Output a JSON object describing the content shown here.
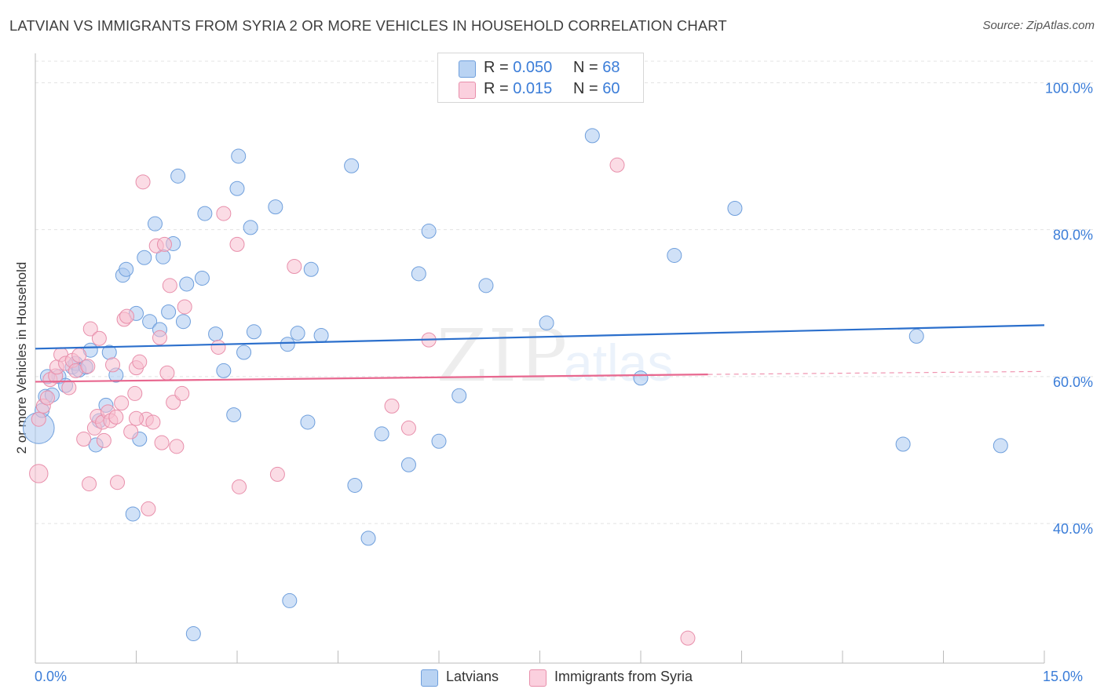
{
  "header": {
    "title": "LATVIAN VS IMMIGRANTS FROM SYRIA 2 OR MORE VEHICLES IN HOUSEHOLD CORRELATION CHART",
    "source": "Source: ZipAtlas.com"
  },
  "watermark": {
    "zip": "ZIP",
    "atlas": "atlas"
  },
  "legend_top": {
    "rows": [
      {
        "r_label": "R = ",
        "r_value": "0.050",
        "n_label": "N = ",
        "n_value": "68"
      },
      {
        "r_label": "R = ",
        "r_value": "0.015",
        "n_label": "N = ",
        "n_value": "60"
      }
    ]
  },
  "legend_bottom": {
    "series1": "Latvians",
    "series2": "Immigrants from Syria"
  },
  "axis": {
    "x_min_label": "0.0%",
    "x_max_label": "15.0%"
  },
  "colors": {
    "latvians_fill": "#a9c8f0",
    "latvians_stroke": "#6f9fdc",
    "latvians_line": "#2b6fcc",
    "syria_fill": "#f7bfd0",
    "syria_stroke": "#e88fab",
    "syria_line": "#e8678f",
    "tick_label": "#3b7dd8",
    "grid": "#e3e3e3"
  },
  "chart_data": {
    "type": "scatter",
    "title": "LATVIAN VS IMMIGRANTS FROM SYRIA 2 OR MORE VEHICLES IN HOUSEHOLD CORRELATION CHART",
    "xlabel": "",
    "ylabel": "2 or more Vehicles in Household",
    "xlim": [
      0,
      15
    ],
    "ylim": [
      21,
      104
    ],
    "y_ticks": [
      40,
      60,
      80,
      100
    ],
    "y_tick_labels": [
      "40.0%",
      "60.0%",
      "80.0%",
      "100.0%"
    ],
    "x_tick_labels": [
      "0.0%",
      "15.0%"
    ],
    "grid": true,
    "legend_position": "top-center",
    "series": [
      {
        "name": "Latvians",
        "r": 0.05,
        "n": 68,
        "trend": {
          "x": [
            0,
            15
          ],
          "y": [
            63.8,
            67.0
          ]
        },
        "points": [
          [
            0.05,
            53.0,
            2.2
          ],
          [
            0.1,
            55.4,
            1
          ],
          [
            0.15,
            57.3,
            1
          ],
          [
            0.25,
            57.5,
            1
          ],
          [
            0.35,
            60.0,
            1
          ],
          [
            0.45,
            58.8,
            1
          ],
          [
            0.55,
            61.3,
            1
          ],
          [
            0.6,
            61.8,
            1
          ],
          [
            0.65,
            60.9,
            1
          ],
          [
            0.75,
            61.3,
            1
          ],
          [
            0.82,
            63.6,
            1
          ],
          [
            0.9,
            50.7,
            1
          ],
          [
            0.95,
            54.0,
            1
          ],
          [
            1.05,
            56.1,
            1
          ],
          [
            1.1,
            63.3,
            1
          ],
          [
            1.2,
            60.2,
            1
          ],
          [
            1.3,
            73.8,
            1
          ],
          [
            1.35,
            74.6,
            1
          ],
          [
            1.45,
            41.3,
            1
          ],
          [
            1.5,
            68.6,
            1
          ],
          [
            1.55,
            51.5,
            1
          ],
          [
            1.62,
            76.2,
            1
          ],
          [
            1.7,
            67.5,
            1
          ],
          [
            1.78,
            80.8,
            1
          ],
          [
            1.85,
            66.4,
            1
          ],
          [
            1.9,
            76.3,
            1
          ],
          [
            1.98,
            68.8,
            1
          ],
          [
            2.05,
            78.1,
            1
          ],
          [
            2.12,
            87.3,
            1
          ],
          [
            2.2,
            67.5,
            1
          ],
          [
            2.25,
            72.6,
            1
          ],
          [
            2.35,
            25.0,
            1
          ],
          [
            2.48,
            73.4,
            1
          ],
          [
            2.52,
            82.2,
            1
          ],
          [
            2.68,
            65.8,
            1
          ],
          [
            2.8,
            60.8,
            1
          ],
          [
            2.95,
            54.8,
            1
          ],
          [
            3.0,
            85.6,
            1
          ],
          [
            3.02,
            90.0,
            1
          ],
          [
            3.1,
            63.3,
            1
          ],
          [
            3.2,
            80.3,
            1
          ],
          [
            3.25,
            66.1,
            1
          ],
          [
            3.57,
            83.1,
            1
          ],
          [
            3.75,
            64.4,
            1
          ],
          [
            3.78,
            29.5,
            1
          ],
          [
            3.9,
            65.9,
            1
          ],
          [
            4.05,
            53.8,
            1
          ],
          [
            4.1,
            74.6,
            1
          ],
          [
            4.25,
            65.6,
            1
          ],
          [
            4.75,
            45.2,
            1
          ],
          [
            4.7,
            88.7,
            1
          ],
          [
            4.95,
            38.0,
            1
          ],
          [
            5.15,
            52.2,
            1
          ],
          [
            5.55,
            48.0,
            1
          ],
          [
            5.7,
            74.0,
            1
          ],
          [
            5.85,
            79.8,
            1
          ],
          [
            6.0,
            51.2,
            1
          ],
          [
            6.3,
            57.4,
            1
          ],
          [
            6.7,
            72.4,
            1
          ],
          [
            7.6,
            67.3,
            1
          ],
          [
            8.28,
            92.8,
            1
          ],
          [
            9.0,
            59.8,
            1
          ],
          [
            9.5,
            76.5,
            1
          ],
          [
            10.4,
            82.9,
            1
          ],
          [
            12.9,
            50.8,
            1
          ],
          [
            13.1,
            65.5,
            1
          ],
          [
            14.35,
            50.6,
            1
          ],
          [
            0.18,
            60.0,
            1
          ]
        ]
      },
      {
        "name": "Immigrants from Syria",
        "r": 0.015,
        "n": 60,
        "trend": {
          "x": [
            0,
            10.0
          ],
          "y": [
            59.3,
            60.3
          ]
        },
        "trend_dashed": {
          "x": [
            10.0,
            15
          ],
          "y": [
            60.3,
            60.7
          ]
        },
        "points": [
          [
            0.05,
            46.8,
            1.3
          ],
          [
            0.05,
            54.2,
            1
          ],
          [
            0.12,
            56.0,
            1
          ],
          [
            0.18,
            57.1,
            1
          ],
          [
            0.22,
            59.6,
            1
          ],
          [
            0.3,
            60.1,
            1
          ],
          [
            0.32,
            61.3,
            1
          ],
          [
            0.38,
            63.0,
            1
          ],
          [
            0.45,
            61.8,
            1
          ],
          [
            0.5,
            58.5,
            1
          ],
          [
            0.55,
            62.2,
            1
          ],
          [
            0.6,
            60.8,
            1
          ],
          [
            0.65,
            62.9,
            1
          ],
          [
            0.72,
            51.5,
            1
          ],
          [
            0.78,
            61.4,
            1
          ],
          [
            0.8,
            45.4,
            1
          ],
          [
            0.82,
            66.5,
            1
          ],
          [
            0.88,
            53.0,
            1
          ],
          [
            0.92,
            54.6,
            1
          ],
          [
            0.95,
            65.2,
            1
          ],
          [
            1.0,
            53.8,
            1
          ],
          [
            1.02,
            51.3,
            1
          ],
          [
            1.08,
            55.2,
            1
          ],
          [
            1.12,
            54.0,
            1
          ],
          [
            1.15,
            61.6,
            1
          ],
          [
            1.2,
            54.5,
            1
          ],
          [
            1.22,
            45.6,
            1
          ],
          [
            1.28,
            56.4,
            1
          ],
          [
            1.32,
            67.8,
            1
          ],
          [
            1.36,
            68.2,
            1
          ],
          [
            1.42,
            52.5,
            1
          ],
          [
            1.48,
            57.7,
            1
          ],
          [
            1.5,
            61.2,
            1
          ],
          [
            1.55,
            62.0,
            1
          ],
          [
            1.6,
            86.5,
            1
          ],
          [
            1.65,
            54.2,
            1
          ],
          [
            1.68,
            42.0,
            1
          ],
          [
            1.75,
            53.8,
            1
          ],
          [
            1.8,
            77.8,
            1
          ],
          [
            1.85,
            65.3,
            1
          ],
          [
            1.88,
            51.0,
            1
          ],
          [
            1.92,
            78.0,
            1
          ],
          [
            1.96,
            60.5,
            1
          ],
          [
            2.0,
            72.4,
            1
          ],
          [
            2.05,
            56.5,
            1
          ],
          [
            2.1,
            50.5,
            1
          ],
          [
            2.18,
            57.7,
            1
          ],
          [
            2.22,
            69.5,
            1
          ],
          [
            2.72,
            64.0,
            1
          ],
          [
            2.8,
            82.2,
            1
          ],
          [
            3.0,
            78.0,
            1
          ],
          [
            3.03,
            45.0,
            1
          ],
          [
            3.6,
            46.7,
            1
          ],
          [
            3.85,
            75.0,
            1
          ],
          [
            5.3,
            56.0,
            1
          ],
          [
            5.55,
            53.0,
            1
          ],
          [
            5.85,
            65.0,
            1
          ],
          [
            8.65,
            88.8,
            1
          ],
          [
            9.7,
            24.4,
            1
          ],
          [
            1.5,
            54.3,
            1
          ]
        ]
      }
    ]
  }
}
